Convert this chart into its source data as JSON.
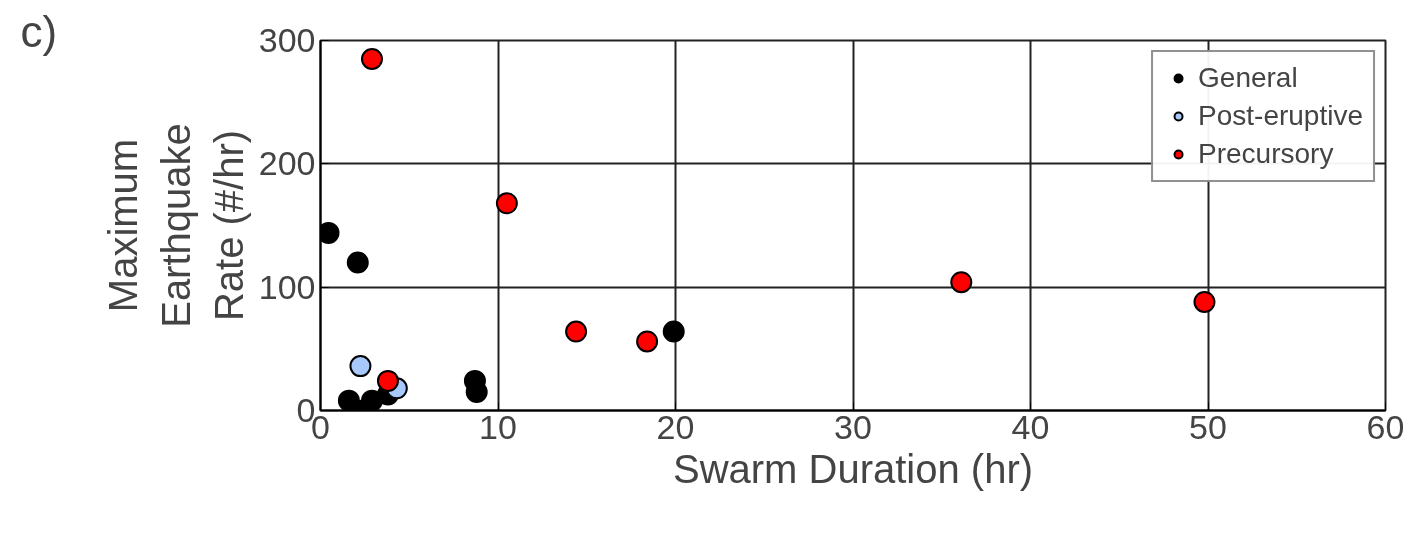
{
  "chart_data": {
    "type": "scatter",
    "xlabel": "Swarm Duration (hr)",
    "ylabel": "Maximum\nEarthquake\nRate (#/hr)",
    "annotations": [
      "c)"
    ],
    "xlim": [
      0,
      60
    ],
    "xticks": [
      0,
      10,
      20,
      30,
      40,
      50,
      60
    ],
    "ylim": [
      0,
      300
    ],
    "yticks": [
      0,
      100,
      200,
      300
    ],
    "grid": true,
    "legend": "top right",
    "marker": "circle",
    "series": [
      {
        "name": "General",
        "color": "#000000",
        "x": [
          0.45,
          2.1,
          1.6,
          2.4,
          2.9,
          3.8,
          8.7,
          8.8,
          19.9
        ],
        "values": [
          144,
          120,
          8,
          0,
          8,
          13,
          24,
          15,
          64
        ]
      },
      {
        "name": "Post-eruptive",
        "color": "#a6c8fa",
        "x": [
          2.25,
          4.3
        ],
        "values": [
          36,
          18
        ]
      },
      {
        "name": "Precursory",
        "color": "#ff0000",
        "x": [
          2.9,
          10.5,
          14.4,
          18.4,
          36.1,
          49.8,
          3.8
        ],
        "values": [
          285,
          168,
          64,
          56,
          104,
          88,
          24
        ]
      }
    ]
  }
}
